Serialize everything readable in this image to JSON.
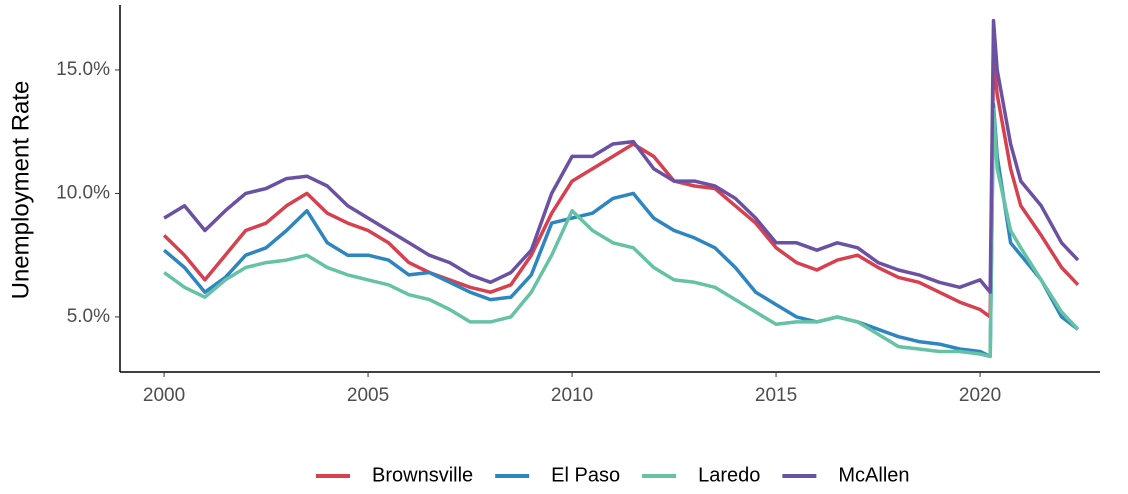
{
  "chart_data": {
    "type": "line",
    "y_label": "Unemployment Rate",
    "x": [
      2000,
      2000.5,
      2001,
      2001.5,
      2002,
      2002.5,
      2003,
      2003.5,
      2004,
      2004.5,
      2005,
      2005.5,
      2006,
      2006.5,
      2007,
      2007.5,
      2008,
      2008.5,
      2009,
      2009.5,
      2010,
      2010.5,
      2011,
      2011.5,
      2012,
      2012.5,
      2013,
      2013.5,
      2014,
      2014.5,
      2015,
      2015.5,
      2016,
      2016.5,
      2017,
      2017.5,
      2018,
      2018.5,
      2019,
      2019.5,
      2020,
      2020.25,
      2020.33,
      2020.42,
      2020.75,
      2021,
      2021.5,
      2022,
      2022.4
    ],
    "series": [
      {
        "name": "Brownsville",
        "color": "#d7404f",
        "values": [
          8.3,
          7.5,
          6.5,
          7.5,
          8.5,
          8.8,
          9.5,
          10.0,
          9.2,
          8.8,
          8.5,
          8.0,
          7.2,
          6.8,
          6.5,
          6.2,
          6.0,
          6.3,
          7.5,
          9.2,
          10.5,
          11.0,
          11.5,
          12.0,
          11.5,
          10.5,
          10.3,
          10.2,
          9.5,
          8.8,
          7.8,
          7.2,
          6.9,
          7.3,
          7.5,
          7.0,
          6.6,
          6.4,
          6.0,
          5.6,
          5.3,
          5.0,
          15.5,
          14.0,
          11.0,
          9.5,
          8.3,
          7.0,
          6.3
        ]
      },
      {
        "name": "El Paso",
        "color": "#2e86c1",
        "values": [
          7.7,
          7.0,
          6.0,
          6.6,
          7.5,
          7.8,
          8.5,
          9.3,
          8.0,
          7.5,
          7.5,
          7.3,
          6.7,
          6.8,
          6.4,
          6.0,
          5.7,
          5.8,
          6.7,
          8.8,
          9.0,
          9.2,
          9.8,
          10.0,
          9.0,
          8.5,
          8.2,
          7.8,
          7.0,
          6.0,
          5.5,
          5.0,
          4.8,
          5.0,
          4.8,
          4.5,
          4.2,
          4.0,
          3.9,
          3.7,
          3.6,
          3.4,
          13.6,
          11.5,
          8.0,
          7.5,
          6.5,
          5.0,
          4.5
        ]
      },
      {
        "name": "Laredo",
        "color": "#66c2a5",
        "values": [
          6.8,
          6.2,
          5.8,
          6.5,
          7.0,
          7.2,
          7.3,
          7.5,
          7.0,
          6.7,
          6.5,
          6.3,
          5.9,
          5.7,
          5.3,
          4.8,
          4.8,
          5.0,
          6.0,
          7.5,
          9.3,
          8.5,
          8.0,
          7.8,
          7.0,
          6.5,
          6.4,
          6.2,
          5.7,
          5.2,
          4.7,
          4.8,
          4.8,
          5.0,
          4.8,
          4.3,
          3.8,
          3.7,
          3.6,
          3.6,
          3.5,
          3.4,
          13.4,
          11.0,
          8.5,
          7.8,
          6.5,
          5.2,
          4.5
        ]
      },
      {
        "name": "McAllen",
        "color": "#6a51a3",
        "values": [
          9.0,
          9.5,
          8.5,
          9.3,
          10.0,
          10.2,
          10.6,
          10.7,
          10.3,
          9.5,
          9.0,
          8.5,
          8.0,
          7.5,
          7.2,
          6.7,
          6.4,
          6.8,
          7.7,
          10.0,
          11.5,
          11.5,
          12.0,
          12.1,
          11.0,
          10.5,
          10.5,
          10.3,
          9.8,
          9.0,
          8.0,
          8.0,
          7.7,
          8.0,
          7.8,
          7.2,
          6.9,
          6.7,
          6.4,
          6.2,
          6.5,
          6.0,
          17.0,
          15.0,
          12.0,
          10.5,
          9.5,
          8.0,
          7.3
        ]
      }
    ],
    "xlim": [
      1998.92,
      2022.94
    ],
    "xticks": [
      2000,
      2005,
      2010,
      2015,
      2020
    ],
    "ylim": [
      2.77,
      17.63
    ],
    "yticks": [
      {
        "value": 5,
        "label": "5.0%"
      },
      {
        "value": 10,
        "label": "10.0%"
      },
      {
        "value": 15,
        "label": "15.0%"
      }
    ],
    "legend": "bottom",
    "grid": false
  }
}
